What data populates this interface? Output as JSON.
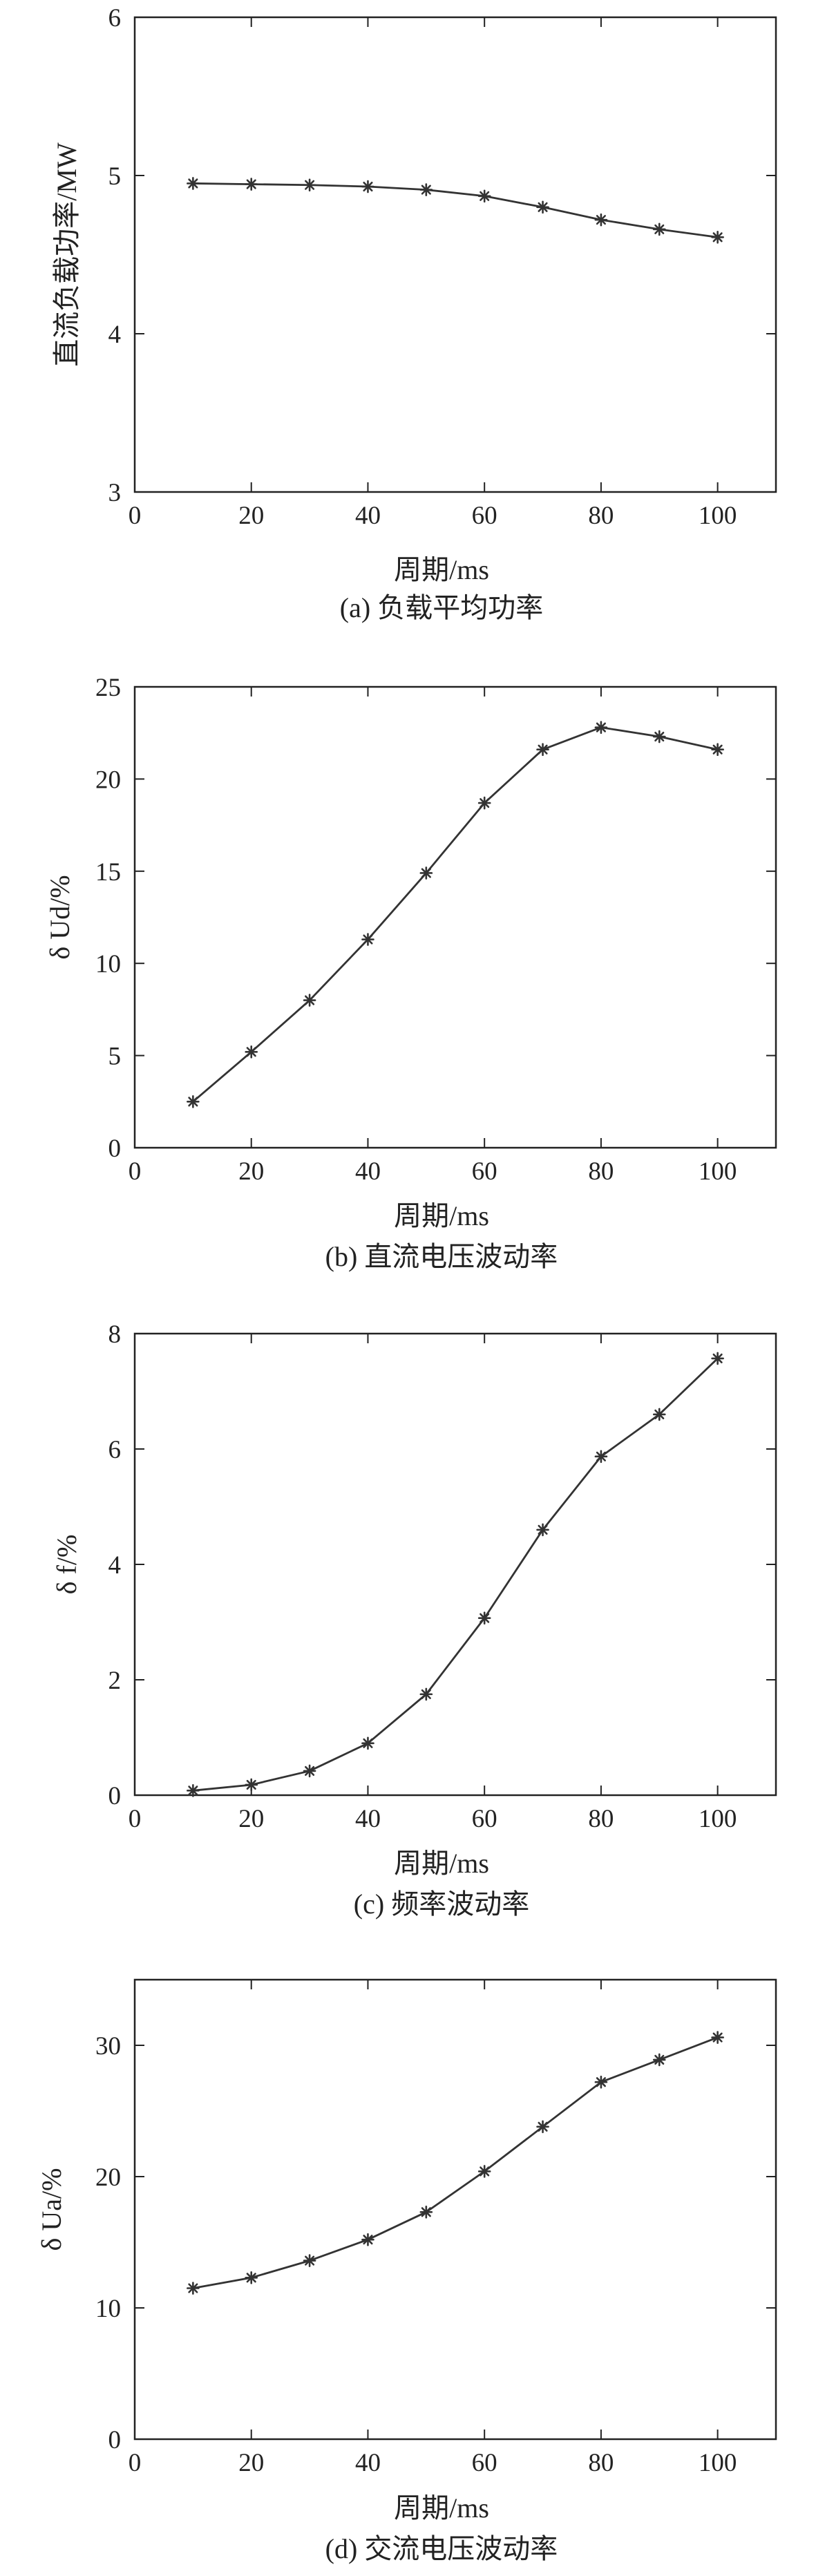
{
  "colors": {
    "line": "#333333",
    "marker": "#333333",
    "axis": "#222222",
    "background": "#ffffff"
  },
  "chart_data": [
    {
      "type": "line",
      "caption": "(a) 负载平均功率",
      "xlabel": "周期/ms",
      "ylabel": "直流负载功率/MW",
      "xlim": [
        0,
        110
      ],
      "ylim": [
        3,
        6
      ],
      "xticks": [
        0,
        20,
        40,
        60,
        80,
        100
      ],
      "yticks": [
        3,
        4,
        5,
        6
      ],
      "grid": false,
      "marker": "asterisk",
      "x": [
        10,
        20,
        30,
        40,
        50,
        60,
        70,
        80,
        90,
        100
      ],
      "y": [
        4.95,
        4.945,
        4.94,
        4.93,
        4.91,
        4.87,
        4.8,
        4.72,
        4.66,
        4.61
      ]
    },
    {
      "type": "line",
      "caption": "(b) 直流电压波动率",
      "xlabel": "周期/ms",
      "ylabel": "δ Ud/%",
      "xlim": [
        0,
        110
      ],
      "ylim": [
        0,
        25
      ],
      "xticks": [
        0,
        20,
        40,
        60,
        80,
        100
      ],
      "yticks": [
        0,
        5,
        10,
        15,
        20,
        25
      ],
      "grid": false,
      "marker": "asterisk",
      "x": [
        10,
        20,
        30,
        40,
        50,
        60,
        70,
        80,
        90,
        100
      ],
      "y": [
        2.5,
        5.2,
        8.0,
        11.3,
        14.9,
        18.7,
        21.6,
        22.8,
        22.3,
        21.6
      ]
    },
    {
      "type": "line",
      "caption": "(c) 频率波动率",
      "xlabel": "周期/ms",
      "ylabel": "δ f/%",
      "xlim": [
        0,
        110
      ],
      "ylim": [
        0,
        8
      ],
      "xticks": [
        0,
        20,
        40,
        60,
        80,
        100
      ],
      "yticks": [
        0,
        2,
        4,
        6,
        8
      ],
      "grid": false,
      "marker": "asterisk",
      "x": [
        10,
        20,
        30,
        40,
        50,
        60,
        70,
        80,
        90,
        100
      ],
      "y": [
        0.08,
        0.18,
        0.42,
        0.9,
        1.75,
        3.07,
        4.6,
        5.87,
        6.6,
        7.57
      ]
    },
    {
      "type": "line",
      "caption": "(d) 交流电压波动率",
      "xlabel": "周期/ms",
      "ylabel": "δ Ua/%",
      "xlim": [
        0,
        110
      ],
      "ylim": [
        0,
        35
      ],
      "xticks": [
        0,
        20,
        40,
        60,
        80,
        100
      ],
      "yticks": [
        0,
        10,
        20,
        30
      ],
      "grid": false,
      "marker": "asterisk",
      "x": [
        10,
        20,
        30,
        40,
        50,
        60,
        70,
        80,
        90,
        100
      ],
      "y": [
        11.5,
        12.3,
        13.6,
        15.2,
        17.3,
        20.4,
        23.8,
        27.2,
        28.9,
        30.6
      ]
    }
  ]
}
